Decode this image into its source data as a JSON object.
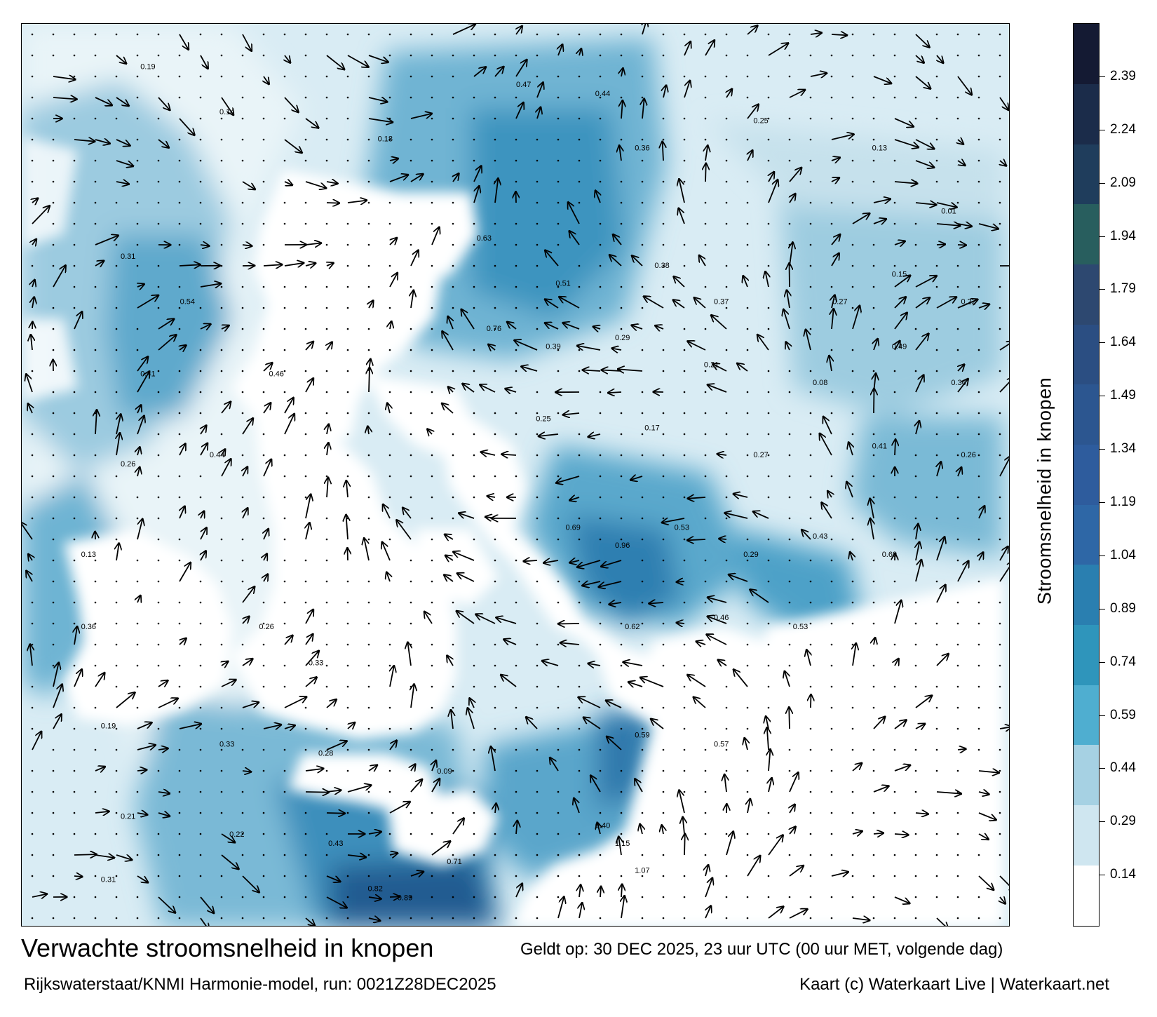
{
  "title": "Verwachte stroomsnelheid in knopen",
  "valid_time": "Geldt op: 30 DEC 2025, 23 uur UTC (00 uur MET, volgende dag)",
  "model_run": "Rijkswaterstaat/KNMI Harmonie-model, run: 0021Z28DEC2025",
  "credit": "Kaart (c) Waterkaart Live | Waterkaart.net",
  "colorbar": {
    "label": "Stroomsnelheid in knopen",
    "ticks": [
      "2.39",
      "2.24",
      "2.09",
      "1.94",
      "1.79",
      "1.64",
      "1.49",
      "1.34",
      "1.19",
      "1.04",
      "0.89",
      "0.74",
      "0.59",
      "0.44",
      "0.29",
      "0.14"
    ],
    "tick_values": [
      2.39,
      2.24,
      2.09,
      1.94,
      1.79,
      1.64,
      1.49,
      1.34,
      1.19,
      1.04,
      0.89,
      0.74,
      0.59,
      0.44,
      0.29,
      0.14
    ],
    "range": [
      0,
      2.54
    ],
    "colors": [
      "#ffffff",
      "#cfe6f0",
      "#a6d1e3",
      "#4faed0",
      "#2f95bb",
      "#2a7fb0",
      "#2e67a6",
      "#2e5c9d",
      "#2c5690",
      "#2b4e82",
      "#2d4870",
      "#285e5e",
      "#1f3d5c",
      "#1b2c4a",
      "#141a33"
    ]
  },
  "speed_labels": [
    {
      "lon": 0.12,
      "lat": 0.95,
      "v": "0.19"
    },
    {
      "lon": 0.2,
      "lat": 0.9,
      "v": "0.14"
    },
    {
      "lon": 0.36,
      "lat": 0.87,
      "v": "0.18"
    },
    {
      "lon": 0.5,
      "lat": 0.93,
      "v": "0.47"
    },
    {
      "lon": 0.58,
      "lat": 0.92,
      "v": "0.44"
    },
    {
      "lon": 0.62,
      "lat": 0.86,
      "v": "0.36"
    },
    {
      "lon": 0.74,
      "lat": 0.89,
      "v": "0.25"
    },
    {
      "lon": 0.86,
      "lat": 0.86,
      "v": "0.13"
    },
    {
      "lon": 0.93,
      "lat": 0.79,
      "v": "0.01"
    },
    {
      "lon": 0.1,
      "lat": 0.74,
      "v": "0.31"
    },
    {
      "lon": 0.16,
      "lat": 0.69,
      "v": "0.54"
    },
    {
      "lon": 0.46,
      "lat": 0.76,
      "v": "0.63"
    },
    {
      "lon": 0.54,
      "lat": 0.71,
      "v": "0.51"
    },
    {
      "lon": 0.64,
      "lat": 0.73,
      "v": "0.38"
    },
    {
      "lon": 0.7,
      "lat": 0.69,
      "v": "0.37"
    },
    {
      "lon": 0.82,
      "lat": 0.69,
      "v": "0.27"
    },
    {
      "lon": 0.88,
      "lat": 0.72,
      "v": "0.15"
    },
    {
      "lon": 0.95,
      "lat": 0.69,
      "v": "0.22"
    },
    {
      "lon": 0.12,
      "lat": 0.61,
      "v": "0.41"
    },
    {
      "lon": 0.25,
      "lat": 0.61,
      "v": "0.46"
    },
    {
      "lon": 0.47,
      "lat": 0.66,
      "v": "0.76"
    },
    {
      "lon": 0.53,
      "lat": 0.64,
      "v": "0.39"
    },
    {
      "lon": 0.6,
      "lat": 0.65,
      "v": "0.29"
    },
    {
      "lon": 0.69,
      "lat": 0.62,
      "v": "0.21"
    },
    {
      "lon": 0.8,
      "lat": 0.6,
      "v": "0.08"
    },
    {
      "lon": 0.88,
      "lat": 0.64,
      "v": "0.49"
    },
    {
      "lon": 0.94,
      "lat": 0.6,
      "v": "0.36"
    },
    {
      "lon": 0.1,
      "lat": 0.51,
      "v": "0.26"
    },
    {
      "lon": 0.19,
      "lat": 0.52,
      "v": "0.44"
    },
    {
      "lon": 0.52,
      "lat": 0.56,
      "v": "0.25"
    },
    {
      "lon": 0.63,
      "lat": 0.55,
      "v": "0.17"
    },
    {
      "lon": 0.74,
      "lat": 0.52,
      "v": "0.27"
    },
    {
      "lon": 0.86,
      "lat": 0.53,
      "v": "0.41"
    },
    {
      "lon": 0.95,
      "lat": 0.52,
      "v": "0.26"
    },
    {
      "lon": 0.06,
      "lat": 0.41,
      "v": "0.13"
    },
    {
      "lon": 0.55,
      "lat": 0.44,
      "v": "0.69"
    },
    {
      "lon": 0.6,
      "lat": 0.42,
      "v": "0.96"
    },
    {
      "lon": 0.66,
      "lat": 0.44,
      "v": "0.53"
    },
    {
      "lon": 0.73,
      "lat": 0.41,
      "v": "0.29"
    },
    {
      "lon": 0.8,
      "lat": 0.43,
      "v": "0.43"
    },
    {
      "lon": 0.87,
      "lat": 0.41,
      "v": "0.69"
    },
    {
      "lon": 0.06,
      "lat": 0.33,
      "v": "0.36"
    },
    {
      "lon": 0.24,
      "lat": 0.33,
      "v": "0.26"
    },
    {
      "lon": 0.29,
      "lat": 0.29,
      "v": "0.33"
    },
    {
      "lon": 0.61,
      "lat": 0.33,
      "v": "0.62"
    },
    {
      "lon": 0.7,
      "lat": 0.34,
      "v": "0.46"
    },
    {
      "lon": 0.78,
      "lat": 0.33,
      "v": "0.53"
    },
    {
      "lon": 0.08,
      "lat": 0.22,
      "v": "0.19"
    },
    {
      "lon": 0.2,
      "lat": 0.2,
      "v": "0.33"
    },
    {
      "lon": 0.3,
      "lat": 0.19,
      "v": "0.28"
    },
    {
      "lon": 0.42,
      "lat": 0.17,
      "v": "0.09"
    },
    {
      "lon": 0.62,
      "lat": 0.21,
      "v": "0.59"
    },
    {
      "lon": 0.7,
      "lat": 0.2,
      "v": "0.57"
    },
    {
      "lon": 0.1,
      "lat": 0.12,
      "v": "0.21"
    },
    {
      "lon": 0.21,
      "lat": 0.1,
      "v": "0.22"
    },
    {
      "lon": 0.31,
      "lat": 0.09,
      "v": "0.43"
    },
    {
      "lon": 0.43,
      "lat": 0.07,
      "v": "0.71"
    },
    {
      "lon": 0.58,
      "lat": 0.11,
      "v": "0.40"
    },
    {
      "lon": 0.6,
      "lat": 0.09,
      "v": "1.15"
    },
    {
      "lon": 0.62,
      "lat": 0.06,
      "v": "1.07"
    },
    {
      "lon": 0.35,
      "lat": 0.04,
      "v": "0.82"
    },
    {
      "lon": 0.38,
      "lat": 0.03,
      "v": "0.89"
    },
    {
      "lon": 0.08,
      "lat": 0.05,
      "v": "0.31"
    }
  ]
}
